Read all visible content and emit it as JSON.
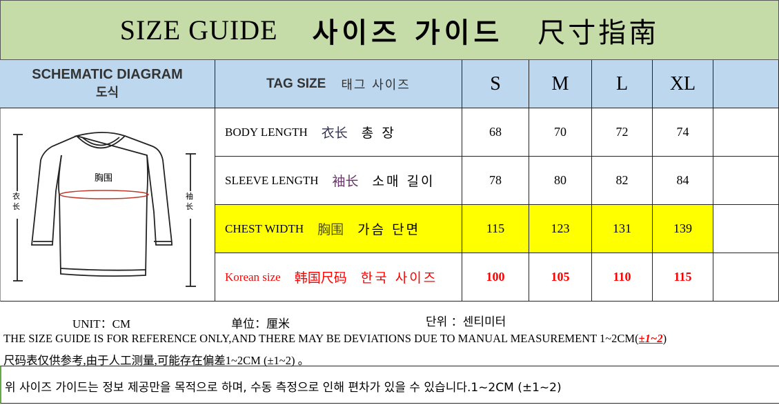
{
  "title": {
    "en": "SIZE GUIDE",
    "ko": "사이즈 가이드",
    "zh": "尺寸指南"
  },
  "header": {
    "diagram_en": "SCHEMATIC DIAGRAM",
    "diagram_ko": "도식",
    "tag_en": "TAG SIZE",
    "tag_ko": "태그 사이즈",
    "sizes": [
      "S",
      "M",
      "L",
      "XL"
    ]
  },
  "diagram": {
    "chest": "胸围",
    "body": "衣长",
    "sleeve": "袖长"
  },
  "rows": [
    {
      "en": "BODY LENGTH",
      "zh": "衣长",
      "ko": "총 장",
      "values": [
        "68",
        "70",
        "72",
        "74"
      ]
    },
    {
      "en": "SLEEVE LENGTH",
      "zh": "袖长",
      "ko": "소매 길이",
      "values": [
        "78",
        "80",
        "82",
        "84"
      ]
    },
    {
      "en": "CHEST WIDTH",
      "zh": "胸围",
      "ko": "가슴 단면",
      "values": [
        "115",
        "123",
        "131",
        "139"
      ],
      "highlight": "#ffff00"
    },
    {
      "en": "Korean size",
      "zh": "韩国尺码",
      "ko": "한국 사이즈",
      "values": [
        "100",
        "105",
        "110",
        "115"
      ],
      "color": "#ff0000"
    }
  ],
  "notes": {
    "unit_en": "UNIT：CM",
    "unit_zh": "单位：厘米",
    "unit_ko": "단위 ：센티미터",
    "line_en": "THE SIZE GUIDE IS FOR REFERENCE ONLY,AND THERE MAY BE DEVIATIONS DUE TO MANUAL MEASUREMENT 1~2CM(",
    "line_en_red": "±1~2",
    "line_en_end": ")",
    "line_zh": "尺码表仅供参考,由于人工测量,可能存在偏差1~2CM (±1~2) 。",
    "line_ko": "위 사이즈 가이드는 정보 제공만을 목적으로 하며, 수동 측정으로 인해 편차가 있을 수 있습니다.1~2CM (±1~2)"
  }
}
